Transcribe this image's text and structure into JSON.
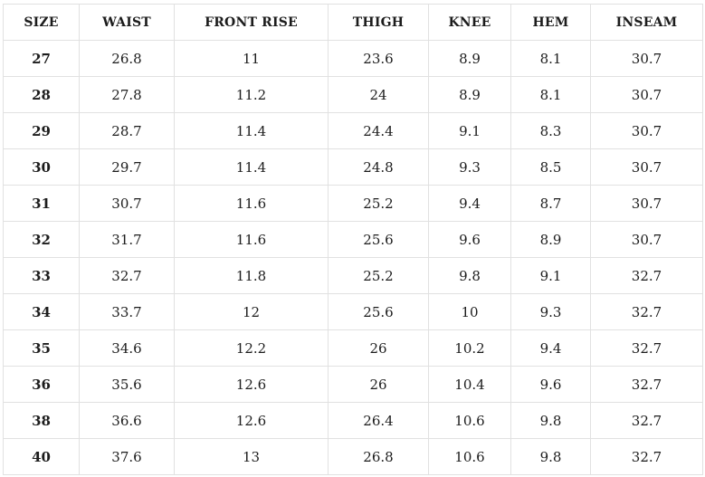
{
  "table": {
    "headers": [
      "SIZE",
      "WAIST",
      "FRONT RISE",
      "THIGH",
      "KNEE",
      "HEM",
      "INSEAM"
    ],
    "rows": [
      [
        "27",
        "26.8",
        "11",
        "23.6",
        "8.9",
        "8.1",
        "30.7"
      ],
      [
        "28",
        "27.8",
        "11.2",
        "24",
        "8.9",
        "8.1",
        "30.7"
      ],
      [
        "29",
        "28.7",
        "11.4",
        "24.4",
        "9.1",
        "8.3",
        "30.7"
      ],
      [
        "30",
        "29.7",
        "11.4",
        "24.8",
        "9.3",
        "8.5",
        "30.7"
      ],
      [
        "31",
        "30.7",
        "11.6",
        "25.2",
        "9.4",
        "8.7",
        "30.7"
      ],
      [
        "32",
        "31.7",
        "11.6",
        "25.6",
        "9.6",
        "8.9",
        "30.7"
      ],
      [
        "33",
        "32.7",
        "11.8",
        "25.2",
        "9.8",
        "9.1",
        "32.7"
      ],
      [
        "34",
        "33.7",
        "12",
        "25.6",
        "10",
        "9.3",
        "32.7"
      ],
      [
        "35",
        "34.6",
        "12.2",
        "26",
        "10.2",
        "9.4",
        "32.7"
      ],
      [
        "36",
        "35.6",
        "12.6",
        "26",
        "10.4",
        "9.6",
        "32.7"
      ],
      [
        "38",
        "36.6",
        "12.6",
        "26.4",
        "10.6",
        "9.8",
        "32.7"
      ],
      [
        "40",
        "37.6",
        "13",
        "26.8",
        "10.6",
        "9.8",
        "32.7"
      ]
    ]
  },
  "chart_data": {
    "type": "table",
    "title": "",
    "columns": [
      "SIZE",
      "WAIST",
      "FRONT RISE",
      "THIGH",
      "KNEE",
      "HEM",
      "INSEAM"
    ],
    "rows": [
      [
        27,
        26.8,
        11,
        23.6,
        8.9,
        8.1,
        30.7
      ],
      [
        28,
        27.8,
        11.2,
        24,
        8.9,
        8.1,
        30.7
      ],
      [
        29,
        28.7,
        11.4,
        24.4,
        9.1,
        8.3,
        30.7
      ],
      [
        30,
        29.7,
        11.4,
        24.8,
        9.3,
        8.5,
        30.7
      ],
      [
        31,
        30.7,
        11.6,
        25.2,
        9.4,
        8.7,
        30.7
      ],
      [
        32,
        31.7,
        11.6,
        25.6,
        9.6,
        8.9,
        30.7
      ],
      [
        33,
        32.7,
        11.8,
        25.2,
        9.8,
        9.1,
        32.7
      ],
      [
        34,
        33.7,
        12,
        25.6,
        10,
        9.3,
        32.7
      ],
      [
        35,
        34.6,
        12.2,
        26,
        10.2,
        9.4,
        32.7
      ],
      [
        36,
        35.6,
        12.6,
        26,
        10.4,
        9.6,
        32.7
      ],
      [
        38,
        36.6,
        12.6,
        26.4,
        10.6,
        9.8,
        32.7
      ],
      [
        40,
        37.6,
        13,
        26.8,
        10.6,
        9.8,
        32.7
      ]
    ]
  },
  "colors": {
    "background": "#ffffff",
    "border": "#e1e1e1",
    "text": "#1c1c1c"
  }
}
